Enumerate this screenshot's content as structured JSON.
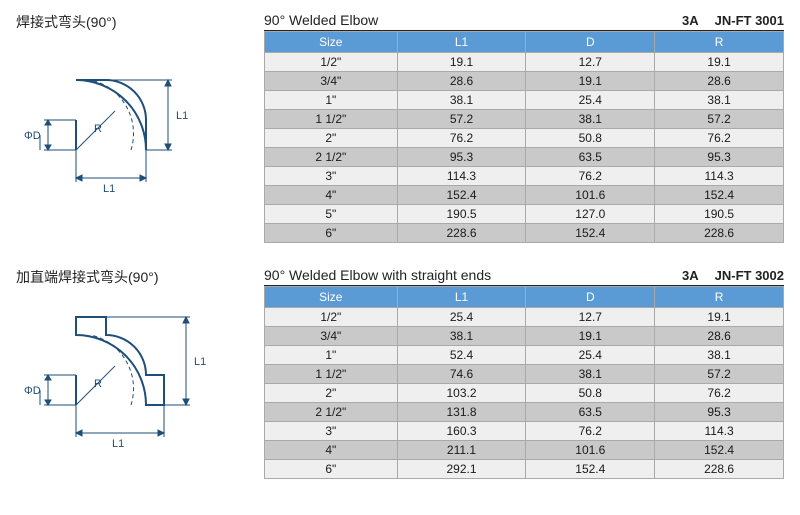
{
  "colors": {
    "header_bg": "#5b9bd5",
    "header_fg": "#ffffff",
    "row_light": "#efefef",
    "row_dark": "#c9c9c9",
    "border": "#a9a9a9",
    "text": "#1a1a1a"
  },
  "sections": [
    {
      "left_title": "焊接式弯头(90°)",
      "diagram_kind": "plain",
      "diagram_labels": {
        "l1v": "L1",
        "l1h": "L1",
        "r": "R",
        "phi_d": "ΦD"
      },
      "table_title": "90° Welded Elbow",
      "code_a": "3A",
      "code_b": "JN-FT 3001",
      "columns": [
        "Size",
        "L1",
        "D",
        "R"
      ],
      "rows": [
        [
          "1/2\"",
          "19.1",
          "12.7",
          "19.1"
        ],
        [
          "3/4\"",
          "28.6",
          "19.1",
          "28.6"
        ],
        [
          "1\"",
          "38.1",
          "25.4",
          "38.1"
        ],
        [
          "1 1/2\"",
          "57.2",
          "38.1",
          "57.2"
        ],
        [
          "2\"",
          "76.2",
          "50.8",
          "76.2"
        ],
        [
          "2 1/2\"",
          "95.3",
          "63.5",
          "95.3"
        ],
        [
          "3\"",
          "114.3",
          "76.2",
          "114.3"
        ],
        [
          "4\"",
          "152.4",
          "101.6",
          "152.4"
        ],
        [
          "5\"",
          "190.5",
          "127.0",
          "190.5"
        ],
        [
          "6\"",
          "228.6",
          "152.4",
          "228.6"
        ]
      ]
    },
    {
      "left_title": "加直端焊接式弯头(90°)",
      "diagram_kind": "straight",
      "diagram_labels": {
        "l1v": "L1",
        "l1h": "L1",
        "r": "R",
        "phi_d": "ΦD"
      },
      "table_title": "90° Welded Elbow with straight ends",
      "code_a": "3A",
      "code_b": "JN-FT 3002",
      "columns": [
        "Size",
        "L1",
        "D",
        "R"
      ],
      "rows": [
        [
          "1/2\"",
          "25.4",
          "12.7",
          "19.1"
        ],
        [
          "3/4\"",
          "38.1",
          "19.1",
          "28.6"
        ],
        [
          "1\"",
          "52.4",
          "25.4",
          "38.1"
        ],
        [
          "1 1/2\"",
          "74.6",
          "38.1",
          "57.2"
        ],
        [
          "2\"",
          "103.2",
          "50.8",
          "76.2"
        ],
        [
          "2 1/2\"",
          "131.8",
          "63.5",
          "95.3"
        ],
        [
          "3\"",
          "160.3",
          "76.2",
          "114.3"
        ],
        [
          "4\"",
          "211.1",
          "101.6",
          "152.4"
        ],
        [
          "6\"",
          "292.1",
          "152.4",
          "228.6"
        ]
      ]
    }
  ]
}
